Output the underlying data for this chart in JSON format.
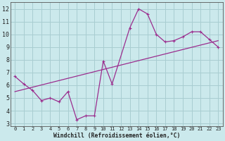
{
  "line1_x": [
    0,
    1,
    2,
    3,
    4,
    5,
    6,
    7,
    8,
    9,
    10,
    11,
    13,
    14,
    15,
    16,
    17,
    18,
    19,
    20,
    21,
    22,
    23
  ],
  "line1_y": [
    6.7,
    6.1,
    5.6,
    4.8,
    5.0,
    4.7,
    5.5,
    3.3,
    3.6,
    3.6,
    7.9,
    6.1,
    10.5,
    12.0,
    11.6,
    10.0,
    9.4,
    9.5,
    9.8,
    10.2,
    10.2,
    9.6,
    9.0
  ],
  "line2_x": [
    0,
    23
  ],
  "line2_y": [
    5.5,
    9.5
  ],
  "line_color": "#9B2D8E",
  "bg_color": "#CBE9EC",
  "grid_color": "#A8CDD1",
  "xlabel": "Windchill (Refroidissement éolien,°C)",
  "xlim": [
    -0.5,
    23.5
  ],
  "ylim": [
    2.8,
    12.5
  ],
  "yticks": [
    3,
    4,
    5,
    6,
    7,
    8,
    9,
    10,
    11,
    12
  ],
  "xticks": [
    0,
    1,
    2,
    3,
    4,
    5,
    6,
    7,
    8,
    9,
    10,
    11,
    12,
    13,
    14,
    15,
    16,
    17,
    18,
    19,
    20,
    21,
    22,
    23
  ]
}
